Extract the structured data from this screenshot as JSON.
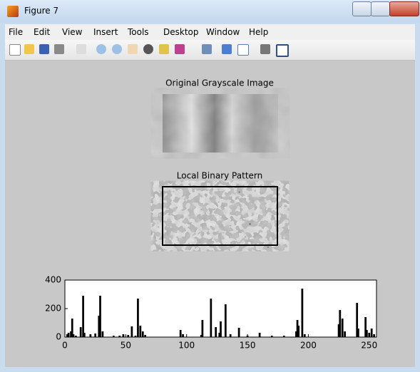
{
  "window": {
    "title": "Figure 7"
  },
  "menu": [
    "File",
    "Edit",
    "View",
    "Insert",
    "Tools",
    "Desktop",
    "Window",
    "Help"
  ],
  "images": [
    {
      "title": "Original Grayscale Image"
    },
    {
      "title": "Local Binary Pattern"
    }
  ],
  "chart_data": {
    "type": "bar",
    "color": "#000000",
    "x": [
      2,
      3,
      5,
      6,
      7,
      9,
      13,
      15,
      16,
      21,
      25,
      28,
      29,
      31,
      40,
      45,
      48,
      52,
      55,
      58,
      60,
      62,
      64,
      66,
      95,
      97,
      112,
      113,
      120,
      124,
      127,
      128,
      132,
      136,
      143,
      150,
      160,
      170,
      180,
      190,
      191,
      192,
      195,
      197,
      225,
      226,
      228,
      230,
      240,
      241,
      247,
      248,
      250,
      252,
      254
    ],
    "values": [
      20,
      30,
      40,
      130,
      20,
      10,
      70,
      290,
      30,
      20,
      25,
      150,
      290,
      40,
      10,
      10,
      20,
      15,
      75,
      10,
      270,
      80,
      40,
      15,
      50,
      20,
      15,
      120,
      270,
      70,
      30,
      110,
      230,
      20,
      65,
      10,
      30,
      10,
      10,
      40,
      120,
      80,
      340,
      20,
      90,
      190,
      130,
      40,
      240,
      60,
      140,
      50,
      30,
      60,
      20
    ],
    "xlim": [
      0,
      256
    ],
    "ylim": [
      0,
      400
    ],
    "xticks": [
      0,
      50,
      100,
      150,
      200,
      250
    ],
    "yticks": [
      0,
      200,
      400
    ]
  }
}
